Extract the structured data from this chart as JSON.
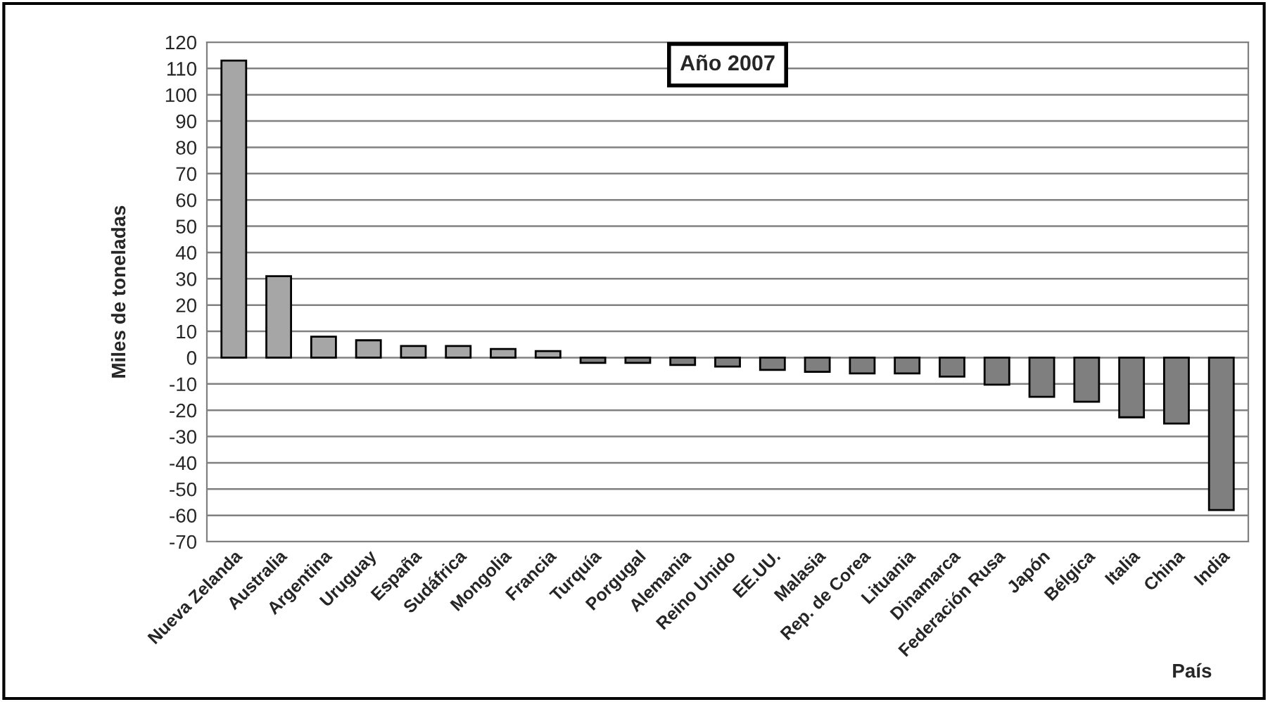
{
  "chart_data": {
    "type": "bar",
    "title": "Año 2007",
    "xlabel": "País",
    "ylabel": "Miles de toneladas",
    "categories": [
      "Nueva Zelanda",
      "Australia",
      "Argentina",
      "Uruguay",
      "España",
      "Sudáfrica",
      "Mongolia",
      "Francia",
      "Turquía",
      "Porgugal",
      "Alemania",
      "Reino Unido",
      "EE.UU.",
      "Malasia",
      "Rep. de Corea",
      "Lituania",
      "Dinamarca",
      "Federación Rusa",
      "Japón",
      "Bélgica",
      "Italia",
      "China",
      "India"
    ],
    "values": [
      113,
      31,
      8,
      6.6,
      4.4,
      4.4,
      3.3,
      2.5,
      -2,
      -2,
      -2.8,
      -3.4,
      -4.7,
      -5.4,
      -6,
      -6,
      -7.2,
      -10.3,
      -14.9,
      -16.8,
      -22.7,
      -25.1,
      -58
    ],
    "colors": [
      "#a6a6a6",
      "#a6a6a6",
      "#a6a6a6",
      "#a6a6a6",
      "#a6a6a6",
      "#a6a6a6",
      "#a6a6a6",
      "#a6a6a6",
      "#7f7f7f",
      "#7f7f7f",
      "#7f7f7f",
      "#7f7f7f",
      "#7f7f7f",
      "#7f7f7f",
      "#7f7f7f",
      "#7f7f7f",
      "#7f7f7f",
      "#7f7f7f",
      "#7f7f7f",
      "#7f7f7f",
      "#7f7f7f",
      "#7f7f7f",
      "#7f7f7f"
    ],
    "ylim": [
      -70,
      120
    ],
    "yticks": [
      -70,
      -60,
      -50,
      -40,
      -30,
      -20,
      -10,
      0,
      10,
      20,
      30,
      40,
      50,
      60,
      70,
      80,
      90,
      100,
      110,
      120
    ],
    "grid": "y",
    "legend": false
  }
}
